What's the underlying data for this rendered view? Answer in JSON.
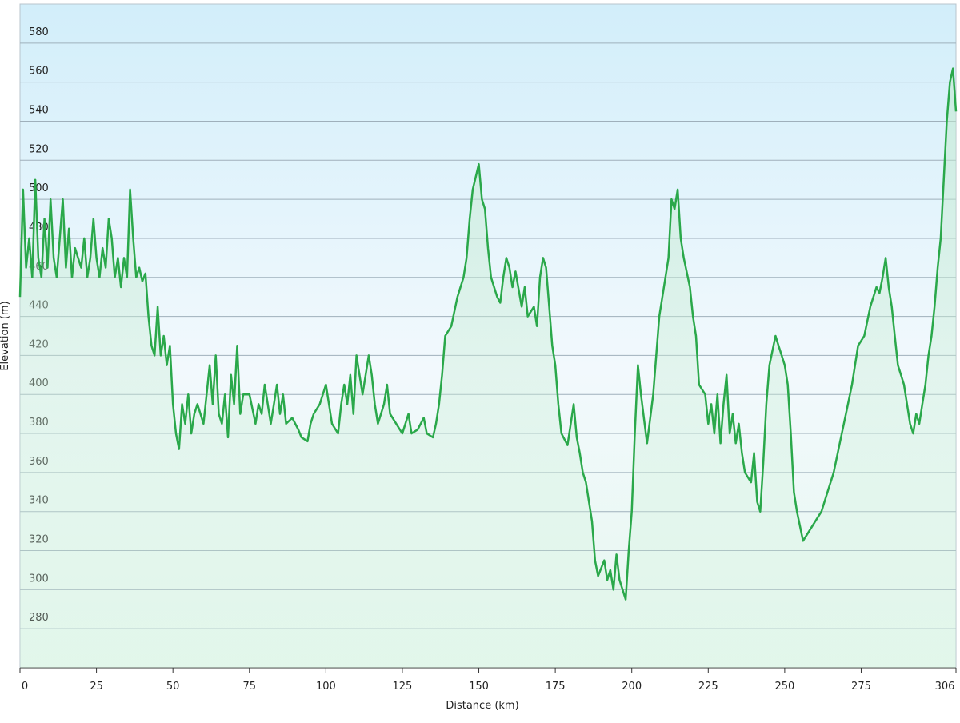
{
  "chart_data": {
    "type": "line",
    "xlabel": "Distance  (km)",
    "ylabel": "Elevation (m)",
    "color": "#2aa84a",
    "grid": true,
    "xlim": [
      0,
      306
    ],
    "ylim": [
      260,
      600
    ],
    "xticks": [
      0,
      25,
      50,
      75,
      100,
      125,
      150,
      175,
      200,
      225,
      250,
      275,
      306
    ],
    "yticks": [
      280,
      300,
      320,
      340,
      360,
      380,
      400,
      420,
      440,
      460,
      480,
      500,
      520,
      540,
      560,
      580
    ],
    "x": [
      0,
      1,
      2,
      3,
      4,
      5,
      6,
      7,
      8,
      9,
      10,
      11,
      12,
      13,
      14,
      15,
      16,
      17,
      18,
      19,
      20,
      21,
      22,
      23,
      24,
      25,
      26,
      27,
      28,
      29,
      30,
      31,
      32,
      33,
      34,
      35,
      36,
      37,
      38,
      39,
      40,
      41,
      42,
      43,
      44,
      45,
      46,
      47,
      48,
      49,
      50,
      51,
      52,
      53,
      54,
      55,
      56,
      57,
      58,
      60,
      62,
      63,
      64,
      65,
      66,
      67,
      68,
      69,
      70,
      71,
      72,
      73,
      75,
      77,
      78,
      79,
      80,
      81,
      82,
      83,
      84,
      85,
      86,
      87,
      89,
      91,
      92,
      94,
      95,
      96,
      98,
      100,
      101,
      102,
      104,
      105,
      106,
      107,
      108,
      109,
      110,
      112,
      114,
      115,
      116,
      117,
      119,
      120,
      121,
      123,
      125,
      127,
      128,
      130,
      132,
      133,
      135,
      136,
      137,
      138,
      139,
      141,
      143,
      145,
      146,
      147,
      148,
      150,
      151,
      152,
      153,
      154,
      156,
      157,
      158,
      159,
      160,
      161,
      162,
      164,
      165,
      166,
      168,
      169,
      170,
      171,
      172,
      173,
      174,
      175,
      176,
      177,
      179,
      181,
      182,
      183,
      184,
      185,
      186,
      187,
      188,
      189,
      191,
      192,
      193,
      194,
      195,
      196,
      198,
      199,
      200,
      201,
      202,
      203,
      205,
      207,
      208,
      209,
      211,
      212,
      213,
      214,
      215,
      216,
      217,
      219,
      220,
      221,
      222,
      224,
      225,
      226,
      227,
      228,
      229,
      230,
      231,
      232,
      233,
      234,
      235,
      236,
      237,
      239,
      240,
      241,
      242,
      243,
      244,
      245,
      247,
      248,
      249,
      250,
      251,
      252,
      253,
      254,
      256,
      258,
      260,
      262,
      264,
      266,
      268,
      270,
      272,
      274,
      276,
      278,
      280,
      281,
      282,
      283,
      284,
      285,
      286,
      287,
      288,
      289,
      290,
      291,
      292,
      293,
      294,
      295,
      296,
      297,
      298,
      299,
      300,
      301,
      302,
      303,
      304,
      305,
      306
    ],
    "values": [
      450,
      505,
      465,
      480,
      460,
      510,
      470,
      460,
      490,
      465,
      500,
      470,
      460,
      480,
      500,
      465,
      485,
      460,
      475,
      470,
      465,
      480,
      460,
      470,
      490,
      470,
      460,
      475,
      465,
      490,
      480,
      460,
      470,
      455,
      470,
      460,
      505,
      480,
      460,
      465,
      458,
      462,
      440,
      425,
      420,
      445,
      420,
      430,
      415,
      425,
      395,
      380,
      372,
      395,
      385,
      400,
      380,
      390,
      395,
      385,
      415,
      395,
      420,
      390,
      385,
      400,
      378,
      410,
      395,
      425,
      390,
      400,
      400,
      385,
      395,
      390,
      405,
      395,
      385,
      395,
      405,
      390,
      400,
      385,
      388,
      382,
      378,
      376,
      385,
      390,
      395,
      405,
      395,
      385,
      380,
      395,
      405,
      395,
      410,
      390,
      420,
      400,
      420,
      410,
      395,
      385,
      395,
      405,
      390,
      385,
      380,
      390,
      380,
      382,
      388,
      380,
      378,
      385,
      395,
      410,
      430,
      435,
      450,
      460,
      470,
      490,
      505,
      518,
      500,
      495,
      475,
      460,
      450,
      447,
      460,
      470,
      465,
      455,
      463,
      445,
      455,
      440,
      445,
      435,
      460,
      470,
      465,
      445,
      425,
      415,
      395,
      380,
      374,
      395,
      378,
      370,
      360,
      355,
      345,
      335,
      315,
      307,
      315,
      305,
      310,
      300,
      318,
      305,
      295,
      320,
      340,
      380,
      415,
      400,
      375,
      400,
      420,
      440,
      460,
      470,
      500,
      495,
      505,
      480,
      470,
      455,
      440,
      430,
      405,
      400,
      385,
      395,
      380,
      400,
      375,
      395,
      410,
      380,
      390,
      375,
      385,
      370,
      360,
      355,
      370,
      345,
      340,
      365,
      395,
      415,
      430,
      425,
      420,
      415,
      405,
      380,
      350,
      340,
      325,
      330,
      335,
      340,
      350,
      360,
      375,
      390,
      405,
      425,
      430,
      445,
      455,
      452,
      460,
      470,
      455,
      445,
      430,
      415,
      410,
      405,
      395,
      385,
      380,
      390,
      385,
      395,
      405,
      420,
      430,
      445,
      465,
      480,
      510,
      540,
      560,
      567,
      545
    ]
  }
}
